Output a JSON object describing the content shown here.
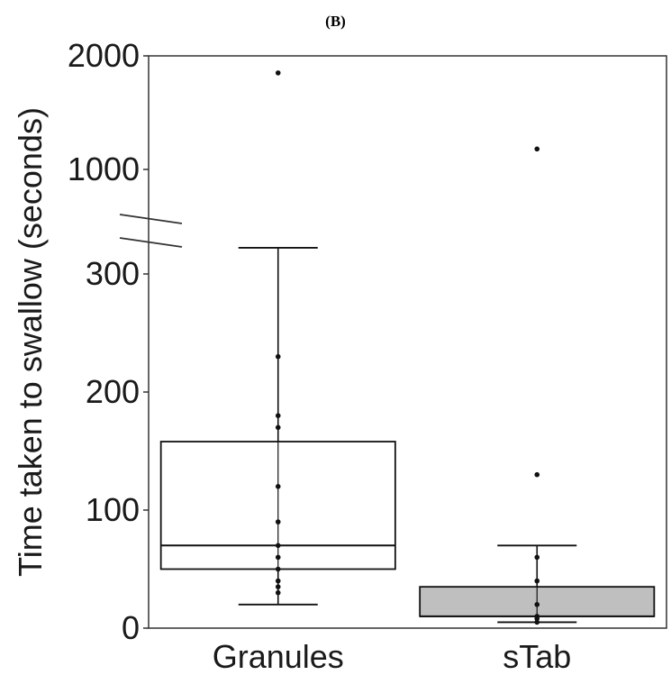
{
  "panel_label": "(B)",
  "chart_data": {
    "type": "box",
    "title": "",
    "ylabel": "Time taken to swallow (seconds)",
    "xlabel": "",
    "categories": [
      "Granules",
      "sTab"
    ],
    "y_axis": {
      "broken": true,
      "lower_segment_range": [
        0,
        300
      ],
      "upper_segment_ticks": [
        1000,
        2000
      ],
      "ticks": [
        {
          "value": 0,
          "label": "0"
        },
        {
          "value": 100,
          "label": "100"
        },
        {
          "value": 200,
          "label": "200"
        },
        {
          "value": 300,
          "label": "300"
        },
        {
          "value": 1000,
          "label": "1000"
        },
        {
          "value": 2000,
          "label": "2000"
        }
      ]
    },
    "boxes": [
      {
        "category": "Granules",
        "whisker_low": 20,
        "q1": 50,
        "median": 70,
        "q3": 158,
        "whisker_high": 310,
        "fill": "#ffffff",
        "points": [
          30,
          35,
          40,
          50,
          60,
          70,
          90,
          120,
          170,
          180,
          230,
          1850
        ]
      },
      {
        "category": "sTab",
        "whisker_low": 5,
        "q1": 10,
        "median": 10,
        "q3": 35,
        "whisker_high": 70,
        "fill": "#bfbfbf",
        "points": [
          5,
          8,
          10,
          20,
          40,
          60,
          130,
          1180
        ]
      }
    ],
    "grid": false,
    "legend": "none"
  }
}
